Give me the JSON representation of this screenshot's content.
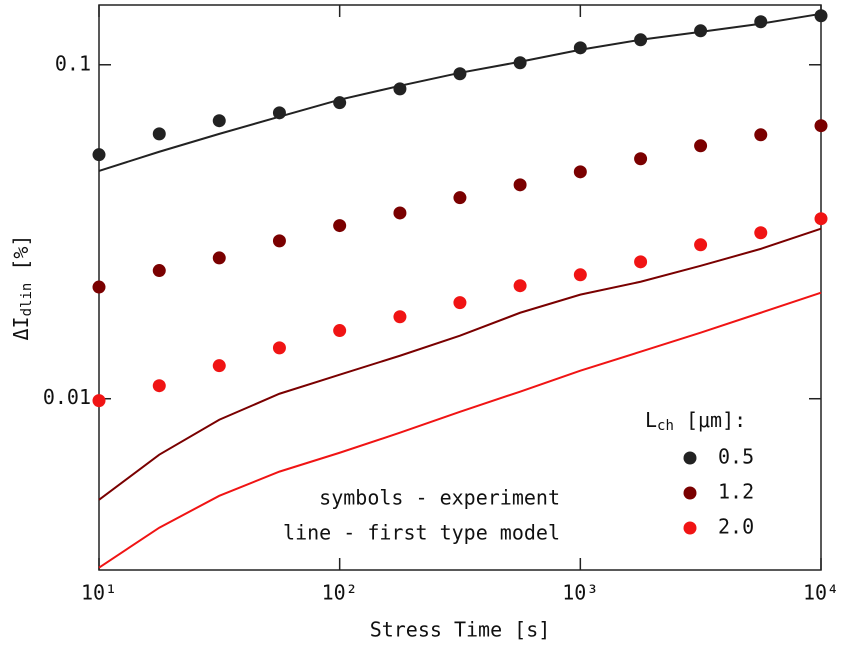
{
  "chart_data": {
    "type": "scatter_line",
    "xlabel": "Stress Time [s]",
    "ylabel": {
      "main": "ΔI",
      "sub": "dlin",
      "tail": " [%]"
    },
    "x_log": true,
    "y_log": true,
    "xlim": [
      10,
      10000
    ],
    "ylim": [
      0.00307,
      0.151
    ],
    "xticks": [
      {
        "value": 10,
        "label": "10¹"
      },
      {
        "value": 100,
        "label": "10²"
      },
      {
        "value": 1000,
        "label": "10³"
      },
      {
        "value": 10000,
        "label": "10⁴"
      }
    ],
    "yticks": [
      0.01,
      0.1
    ],
    "x": [
      10,
      17.8,
      31.6,
      56.2,
      100,
      178,
      316,
      562,
      1000,
      1780,
      3160,
      5620,
      10000
    ],
    "legend_title": {
      "main": "L",
      "sub": "ch",
      "tail": " [μm]:"
    },
    "legend_position": "lower right",
    "annotations": [
      "symbols - experiment",
      "line - first type model"
    ],
    "series": [
      {
        "name": "0.5",
        "color": "#222222",
        "values": [
          0.0538,
          0.0621,
          0.068,
          0.0718,
          0.077,
          0.0847,
          0.094,
          0.1014,
          0.1124,
          0.1188,
          0.1264,
          0.1345,
          0.1402
        ],
        "model": [
          0.0481,
          0.0549,
          0.0621,
          0.0699,
          0.0786,
          0.0865,
          0.0946,
          0.1021,
          0.1109,
          0.1188,
          0.1255,
          0.1327,
          0.1421
        ]
      },
      {
        "name": "1.2",
        "color": "#7a0000",
        "values": [
          0.0216,
          0.0242,
          0.0264,
          0.0297,
          0.033,
          0.036,
          0.04,
          0.0437,
          0.0478,
          0.0523,
          0.0572,
          0.0617,
          0.0657
        ],
        "model": [
          0.00498,
          0.0068,
          0.00865,
          0.01035,
          0.0118,
          0.01345,
          0.01544,
          0.01809,
          0.0205,
          0.0224,
          0.025,
          0.0281,
          0.0323
        ]
      },
      {
        "name": "2.0",
        "color": "#f01414",
        "values": [
          0.00987,
          0.01094,
          0.01256,
          0.0142,
          0.016,
          0.0176,
          0.0194,
          0.0218,
          0.0235,
          0.0257,
          0.0289,
          0.0314,
          0.0346
        ],
        "model": [
          0.00312,
          0.00411,
          0.00512,
          0.00605,
          0.00689,
          0.00791,
          0.00914,
          0.0105,
          0.01213,
          0.01383,
          0.01577,
          0.01809,
          0.02077
        ]
      }
    ]
  }
}
